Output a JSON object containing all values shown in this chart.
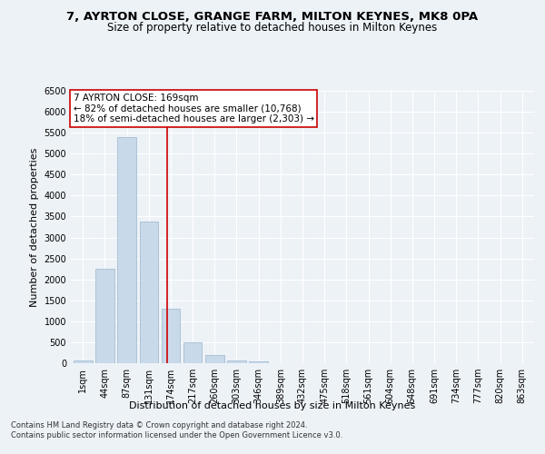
{
  "title1": "7, AYRTON CLOSE, GRANGE FARM, MILTON KEYNES, MK8 0PA",
  "title2": "Size of property relative to detached houses in Milton Keynes",
  "xlabel": "Distribution of detached houses by size in Milton Keynes",
  "ylabel": "Number of detached properties",
  "bar_values": [
    75,
    2250,
    5400,
    3380,
    1300,
    490,
    185,
    75,
    40,
    0,
    0,
    0,
    0,
    0,
    0,
    0,
    0,
    0,
    0,
    0,
    0
  ],
  "bar_labels": [
    "1sqm",
    "44sqm",
    "87sqm",
    "131sqm",
    "174sqm",
    "217sqm",
    "260sqm",
    "303sqm",
    "346sqm",
    "389sqm",
    "432sqm",
    "475sqm",
    "518sqm",
    "561sqm",
    "604sqm",
    "648sqm",
    "691sqm",
    "734sqm",
    "777sqm",
    "820sqm",
    "863sqm"
  ],
  "bar_color": "#c8d9ea",
  "bar_edgecolor": "#9ab5cc",
  "vline_x": 3.82,
  "vline_color": "#cc0000",
  "annotation_line1": "7 AYRTON CLOSE: 169sqm",
  "annotation_line2": "← 82% of detached houses are smaller (10,768)",
  "annotation_line3": "18% of semi-detached houses are larger (2,303) →",
  "annotation_box_color": "#ffffff",
  "annotation_box_edgecolor": "#cc0000",
  "ylim": [
    0,
    6500
  ],
  "yticks": [
    0,
    500,
    1000,
    1500,
    2000,
    2500,
    3000,
    3500,
    4000,
    4500,
    5000,
    5500,
    6000,
    6500
  ],
  "footer1": "Contains HM Land Registry data © Crown copyright and database right 2024.",
  "footer2": "Contains public sector information licensed under the Open Government Licence v3.0.",
  "bg_color": "#edf2f7",
  "grid_color": "#ffffff",
  "title_fontsize": 9.5,
  "subtitle_fontsize": 8.5,
  "axis_label_fontsize": 8,
  "tick_fontsize": 7,
  "footer_fontsize": 6,
  "annot_fontsize": 7.5
}
